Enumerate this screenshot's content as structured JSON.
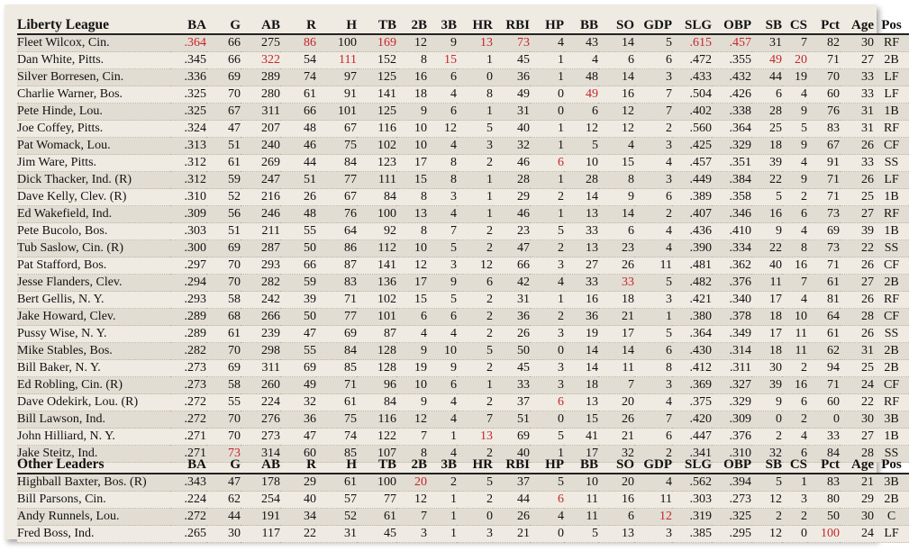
{
  "columns": [
    "BA",
    "G",
    "AB",
    "R",
    "H",
    "TB",
    "2B",
    "3B",
    "HR",
    "RBI",
    "HP",
    "BB",
    "SO",
    "GDP",
    "SLG",
    "OBP",
    "SB",
    "CS",
    "Pct",
    "Age",
    "Pos"
  ],
  "highlight_color": "#c4262e",
  "sections": [
    {
      "title": "Liberty League",
      "rows": [
        {
          "name": "Fleet Wilcox, Cin.",
          "values": [
            ".364",
            "66",
            "275",
            "86",
            "100",
            "169",
            "12",
            "9",
            "13",
            "73",
            "4",
            "43",
            "14",
            "5",
            ".615",
            ".457",
            "31",
            "7",
            "82",
            "30",
            "RF"
          ],
          "hl": [
            0,
            3,
            5,
            8,
            9,
            14,
            15
          ]
        },
        {
          "name": "Dan White, Pitts.",
          "values": [
            ".345",
            "66",
            "322",
            "54",
            "111",
            "152",
            "8",
            "15",
            "1",
            "45",
            "1",
            "4",
            "6",
            "6",
            ".472",
            ".355",
            "49",
            "20",
            "71",
            "27",
            "2B"
          ],
          "hl": [
            2,
            4,
            7,
            16,
            17
          ]
        },
        {
          "name": "Silver Borresen, Cin.",
          "values": [
            ".336",
            "69",
            "289",
            "74",
            "97",
            "125",
            "16",
            "6",
            "0",
            "36",
            "1",
            "48",
            "14",
            "3",
            ".433",
            ".432",
            "44",
            "19",
            "70",
            "33",
            "LF"
          ],
          "hl": []
        },
        {
          "name": "Charlie Warner, Bos.",
          "values": [
            ".325",
            "70",
            "280",
            "61",
            "91",
            "141",
            "18",
            "4",
            "8",
            "49",
            "0",
            "49",
            "16",
            "7",
            ".504",
            ".426",
            "6",
            "4",
            "60",
            "33",
            "LF"
          ],
          "hl": [
            11
          ]
        },
        {
          "name": "Pete Hinde, Lou.",
          "values": [
            ".325",
            "67",
            "311",
            "66",
            "101",
            "125",
            "9",
            "6",
            "1",
            "31",
            "0",
            "6",
            "12",
            "7",
            ".402",
            ".338",
            "28",
            "9",
            "76",
            "31",
            "1B"
          ],
          "hl": []
        },
        {
          "name": "Joe Coffey, Pitts.",
          "values": [
            ".324",
            "47",
            "207",
            "48",
            "67",
            "116",
            "10",
            "12",
            "5",
            "40",
            "1",
            "12",
            "12",
            "2",
            ".560",
            ".364",
            "25",
            "5",
            "83",
            "31",
            "RF"
          ],
          "hl": []
        },
        {
          "name": "Pat Womack, Lou.",
          "values": [
            ".313",
            "51",
            "240",
            "46",
            "75",
            "102",
            "10",
            "4",
            "3",
            "32",
            "1",
            "5",
            "4",
            "3",
            ".425",
            ".329",
            "18",
            "9",
            "67",
            "26",
            "CF"
          ],
          "hl": []
        },
        {
          "name": "Jim Ware, Pitts.",
          "values": [
            ".312",
            "61",
            "269",
            "44",
            "84",
            "123",
            "17",
            "8",
            "2",
            "46",
            "6",
            "10",
            "15",
            "4",
            ".457",
            ".351",
            "39",
            "4",
            "91",
            "33",
            "SS"
          ],
          "hl": [
            10
          ]
        },
        {
          "name": "Dick Thacker, Ind.  (R)",
          "values": [
            ".312",
            "59",
            "247",
            "51",
            "77",
            "111",
            "15",
            "8",
            "1",
            "28",
            "1",
            "28",
            "8",
            "3",
            ".449",
            ".384",
            "22",
            "9",
            "71",
            "26",
            "LF"
          ],
          "hl": []
        },
        {
          "name": "Dave Kelly, Clev.  (R)",
          "values": [
            ".310",
            "52",
            "216",
            "26",
            "67",
            "84",
            "8",
            "3",
            "1",
            "29",
            "2",
            "14",
            "9",
            "6",
            ".389",
            ".358",
            "5",
            "2",
            "71",
            "25",
            "1B"
          ],
          "hl": []
        },
        {
          "name": "Ed Wakefield, Ind.",
          "values": [
            ".309",
            "56",
            "246",
            "48",
            "76",
            "100",
            "13",
            "4",
            "1",
            "46",
            "1",
            "13",
            "14",
            "2",
            ".407",
            ".346",
            "16",
            "6",
            "73",
            "27",
            "RF"
          ],
          "hl": []
        },
        {
          "name": "Pete Bucolo, Bos.",
          "values": [
            ".303",
            "51",
            "211",
            "55",
            "64",
            "92",
            "8",
            "7",
            "2",
            "23",
            "5",
            "33",
            "6",
            "4",
            ".436",
            ".410",
            "9",
            "4",
            "69",
            "39",
            "1B"
          ],
          "hl": []
        },
        {
          "name": "Tub Saslow, Cin.  (R)",
          "values": [
            ".300",
            "69",
            "287",
            "50",
            "86",
            "112",
            "10",
            "5",
            "2",
            "47",
            "2",
            "13",
            "23",
            "4",
            ".390",
            ".334",
            "22",
            "8",
            "73",
            "22",
            "SS"
          ],
          "hl": []
        },
        {
          "name": "Pat Stafford, Bos.",
          "values": [
            ".297",
            "70",
            "293",
            "66",
            "87",
            "141",
            "12",
            "3",
            "12",
            "66",
            "3",
            "27",
            "26",
            "11",
            ".481",
            ".362",
            "40",
            "16",
            "71",
            "26",
            "CF"
          ],
          "hl": []
        },
        {
          "name": "Jesse Flanders, Clev.",
          "values": [
            ".294",
            "70",
            "282",
            "59",
            "83",
            "136",
            "17",
            "9",
            "6",
            "42",
            "4",
            "33",
            "33",
            "5",
            ".482",
            ".376",
            "11",
            "7",
            "61",
            "27",
            "2B"
          ],
          "hl": [
            12
          ]
        },
        {
          "name": "Bert Gellis, N. Y.",
          "values": [
            ".293",
            "58",
            "242",
            "39",
            "71",
            "102",
            "15",
            "5",
            "2",
            "31",
            "1",
            "16",
            "18",
            "3",
            ".421",
            ".340",
            "17",
            "4",
            "81",
            "26",
            "RF"
          ],
          "hl": []
        },
        {
          "name": "Jake Howard, Clev.",
          "values": [
            ".289",
            "68",
            "266",
            "50",
            "77",
            "101",
            "6",
            "6",
            "2",
            "36",
            "2",
            "36",
            "21",
            "1",
            ".380",
            ".378",
            "18",
            "10",
            "64",
            "28",
            "CF"
          ],
          "hl": []
        },
        {
          "name": "Pussy Wise, N. Y.",
          "values": [
            ".289",
            "61",
            "239",
            "47",
            "69",
            "87",
            "4",
            "4",
            "2",
            "26",
            "3",
            "19",
            "17",
            "5",
            ".364",
            ".349",
            "17",
            "11",
            "61",
            "26",
            "SS"
          ],
          "hl": []
        },
        {
          "name": "Mike Stables, Bos.",
          "values": [
            ".282",
            "70",
            "298",
            "55",
            "84",
            "128",
            "9",
            "10",
            "5",
            "50",
            "0",
            "14",
            "14",
            "6",
            ".430",
            ".314",
            "18",
            "11",
            "62",
            "31",
            "2B"
          ],
          "hl": []
        },
        {
          "name": "Bill Baker, N. Y.",
          "values": [
            ".273",
            "69",
            "311",
            "69",
            "85",
            "128",
            "19",
            "9",
            "2",
            "45",
            "3",
            "14",
            "11",
            "8",
            ".412",
            ".311",
            "30",
            "2",
            "94",
            "25",
            "2B"
          ],
          "hl": []
        },
        {
          "name": "Ed Robling, Cin.  (R)",
          "values": [
            ".273",
            "58",
            "260",
            "49",
            "71",
            "96",
            "10",
            "6",
            "1",
            "33",
            "3",
            "18",
            "7",
            "3",
            ".369",
            ".327",
            "39",
            "16",
            "71",
            "24",
            "CF"
          ],
          "hl": []
        },
        {
          "name": "Dave Odekirk, Lou.  (R)",
          "values": [
            ".272",
            "55",
            "224",
            "32",
            "61",
            "84",
            "9",
            "4",
            "2",
            "37",
            "6",
            "13",
            "20",
            "4",
            ".375",
            ".329",
            "9",
            "6",
            "60",
            "22",
            "RF"
          ],
          "hl": [
            10
          ]
        },
        {
          "name": "Bill Lawson, Ind.",
          "values": [
            ".272",
            "70",
            "276",
            "36",
            "75",
            "116",
            "12",
            "4",
            "7",
            "51",
            "0",
            "15",
            "26",
            "7",
            ".420",
            ".309",
            "0",
            "2",
            "0",
            "30",
            "3B"
          ],
          "hl": []
        },
        {
          "name": "John Hilliard, N. Y.",
          "values": [
            ".271",
            "70",
            "273",
            "47",
            "74",
            "122",
            "7",
            "1",
            "13",
            "69",
            "5",
            "41",
            "21",
            "6",
            ".447",
            ".376",
            "2",
            "4",
            "33",
            "27",
            "1B"
          ],
          "hl": [
            8
          ]
        },
        {
          "name": "Jake Steitz, Ind.",
          "values": [
            ".271",
            "73",
            "314",
            "60",
            "85",
            "107",
            "8",
            "4",
            "2",
            "40",
            "1",
            "17",
            "32",
            "2",
            ".341",
            ".310",
            "32",
            "6",
            "84",
            "28",
            "SS"
          ],
          "hl": [
            1
          ]
        }
      ]
    },
    {
      "title": "Other Leaders",
      "rows": [
        {
          "name": "Highball Baxter, Bos.  (R)",
          "values": [
            ".343",
            "47",
            "178",
            "29",
            "61",
            "100",
            "20",
            "2",
            "5",
            "37",
            "5",
            "10",
            "20",
            "4",
            ".562",
            ".394",
            "5",
            "1",
            "83",
            "21",
            "3B"
          ],
          "hl": [
            6
          ]
        },
        {
          "name": "Bill Parsons, Cin.",
          "values": [
            ".224",
            "62",
            "254",
            "40",
            "57",
            "77",
            "12",
            "1",
            "2",
            "44",
            "6",
            "11",
            "16",
            "11",
            ".303",
            ".273",
            "12",
            "3",
            "80",
            "29",
            "2B"
          ],
          "hl": [
            10
          ]
        },
        {
          "name": "Andy Runnels, Lou.",
          "values": [
            ".272",
            "44",
            "191",
            "34",
            "52",
            "61",
            "7",
            "1",
            "0",
            "26",
            "4",
            "11",
            "6",
            "12",
            ".319",
            ".325",
            "2",
            "2",
            "50",
            "30",
            "C"
          ],
          "hl": [
            13
          ]
        },
        {
          "name": "Fred Boss, Ind.",
          "values": [
            ".265",
            "30",
            "117",
            "22",
            "31",
            "45",
            "3",
            "1",
            "3",
            "21",
            "0",
            "5",
            "13",
            "3",
            ".385",
            ".295",
            "12",
            "0",
            "100",
            "24",
            "LF"
          ],
          "hl": [
            18
          ]
        }
      ]
    }
  ]
}
